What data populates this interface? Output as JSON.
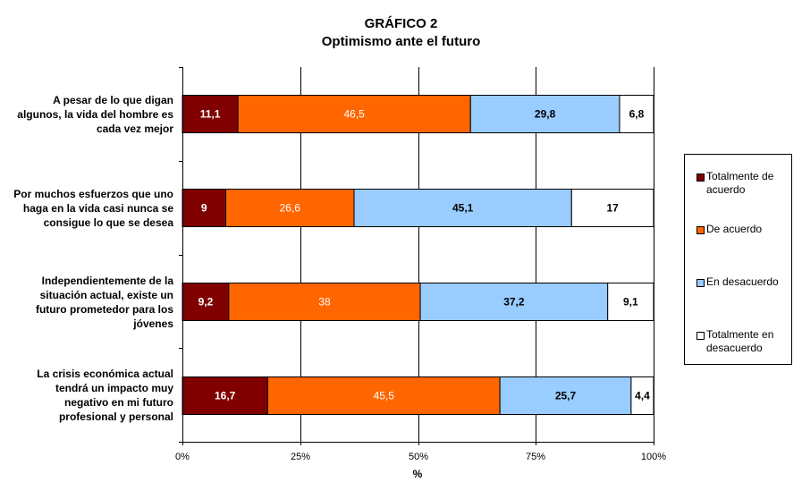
{
  "chart_data": {
    "type": "bar",
    "orientation": "horizontal",
    "stacked": "percent",
    "title": "GRÁFICO 2",
    "subtitle": "Optimismo ante el futuro",
    "xlabel": "%",
    "ylabel": "",
    "xlim": [
      0,
      100
    ],
    "x_ticks": [
      "0%",
      "25%",
      "50%",
      "75%",
      "100%"
    ],
    "grid": true,
    "legend_position": "right",
    "categories": [
      "A pesar de lo que digan algunos, la vida del hombre es cada vez mejor",
      "Por muchos esfuerzos que uno haga en la vida casi nunca se consigue lo que se desea",
      "Independientemente de la situación actual, existe un futuro prometedor para los jóvenes",
      "La crisis económica actual tendrá un impacto muy negativo en mi futuro profesional y personal"
    ],
    "series": [
      {
        "name": "Totalmente de acuerdo",
        "color": "#800000",
        "label_color": "#ffffff",
        "label_bold": true,
        "values": [
          11.1,
          9,
          9.2,
          16.7
        ],
        "labels": [
          "11,1",
          "9",
          "9,2",
          "16,7"
        ]
      },
      {
        "name": "De acuerdo",
        "color": "#ff6600",
        "label_color": "#ffffff",
        "label_bold": false,
        "values": [
          46.5,
          26.6,
          38,
          45.5
        ],
        "labels": [
          "46,5",
          "26,6",
          "38",
          "45,5"
        ]
      },
      {
        "name": "En desacuerdo",
        "color": "#99ccff",
        "label_color": "#000000",
        "label_bold": true,
        "values": [
          29.8,
          45.1,
          37.2,
          25.7
        ],
        "labels": [
          "29,8",
          "45,1",
          "37,2",
          "25,7"
        ]
      },
      {
        "name": "Totalmente en desacuerdo",
        "color": "#ffffff",
        "label_color": "#000000",
        "label_bold": true,
        "values": [
          6.8,
          17,
          9.1,
          4.4
        ],
        "labels": [
          "6,8",
          "17",
          "9,1",
          "4,4"
        ]
      }
    ]
  }
}
